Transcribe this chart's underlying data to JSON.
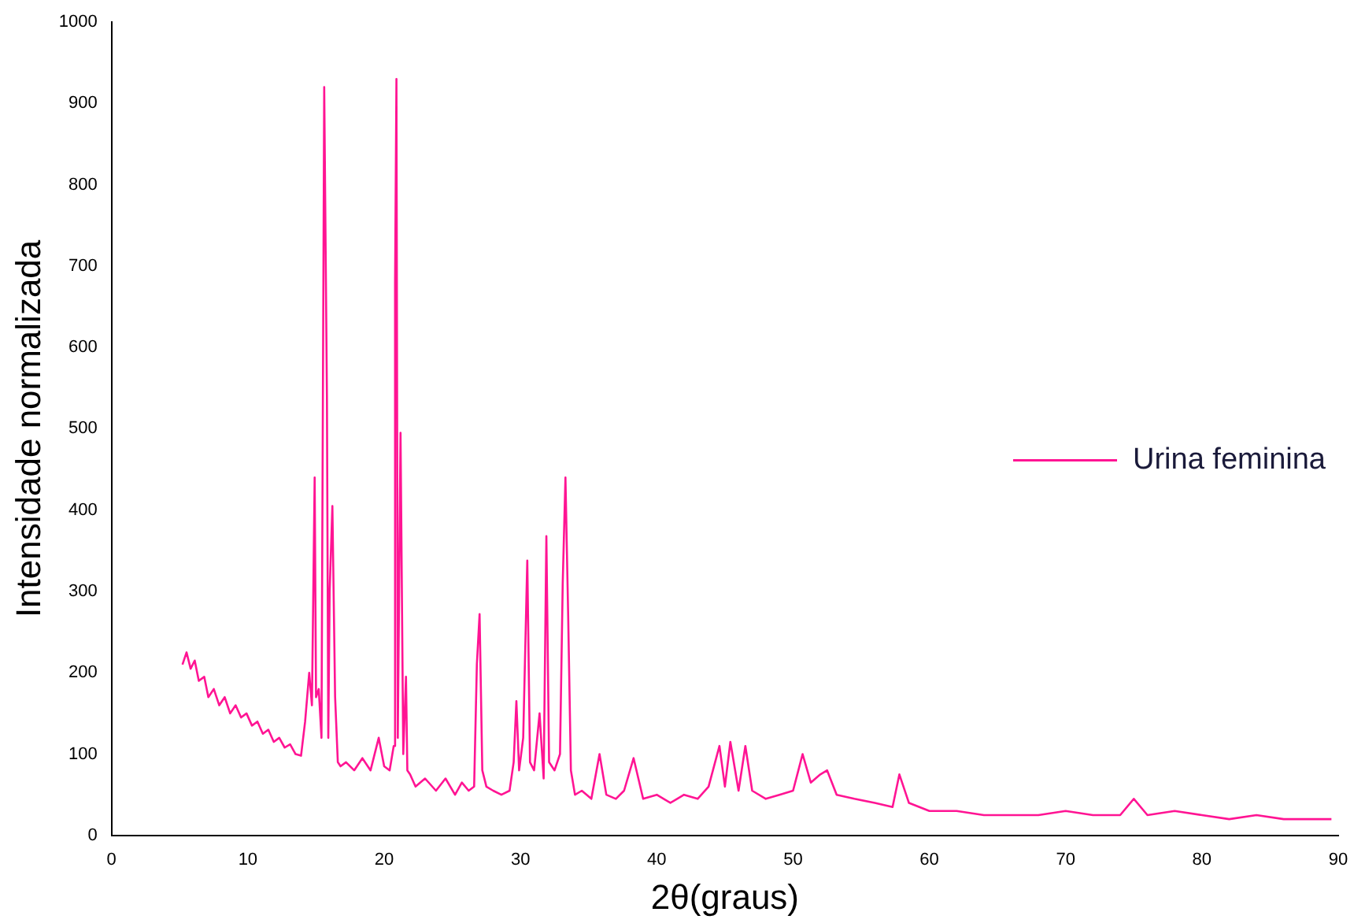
{
  "chart_data": {
    "type": "line",
    "xlabel": "2θ(graus)",
    "ylabel": "Intensidade normalizada",
    "xlim": [
      0,
      90
    ],
    "xticks": [
      0,
      10,
      20,
      30,
      40,
      50,
      60,
      70,
      80,
      90
    ],
    "ylim": [
      0,
      1000
    ],
    "yticks": [
      0,
      100,
      200,
      300,
      400,
      500,
      600,
      700,
      800,
      900,
      1000
    ],
    "grid": false,
    "legend": "right",
    "marker": "none",
    "line_style": "solid",
    "series": [
      {
        "name": "Urina feminina",
        "color": "#ff1493",
        "x": [
          5.2,
          5.5,
          5.8,
          6.1,
          6.4,
          6.8,
          7.1,
          7.5,
          7.9,
          8.3,
          8.7,
          9.1,
          9.5,
          9.9,
          10.3,
          10.7,
          11.1,
          11.5,
          11.9,
          12.3,
          12.7,
          13.1,
          13.5,
          13.9,
          14.2,
          14.5,
          14.7,
          14.9,
          15.0,
          15.2,
          15.4,
          15.6,
          15.8,
          15.9,
          16.0,
          16.2,
          16.4,
          16.6,
          16.8,
          17.2,
          17.8,
          18.4,
          19.0,
          19.6,
          20.0,
          20.4,
          20.7,
          20.8,
          20.9,
          21.0,
          21.2,
          21.4,
          21.6,
          21.7,
          21.9,
          22.3,
          23.0,
          23.8,
          24.5,
          25.2,
          25.7,
          26.2,
          26.6,
          26.8,
          27.0,
          27.2,
          27.5,
          28.0,
          28.6,
          29.2,
          29.5,
          29.7,
          29.9,
          30.2,
          30.5,
          30.7,
          31.0,
          31.4,
          31.7,
          31.9,
          32.1,
          32.5,
          32.9,
          33.1,
          33.3,
          33.5,
          33.7,
          34.0,
          34.5,
          35.2,
          35.8,
          36.3,
          37.0,
          37.6,
          38.3,
          39.0,
          40.0,
          41.0,
          42.0,
          43.0,
          43.8,
          44.6,
          45.0,
          45.4,
          46.0,
          46.5,
          47.0,
          48.0,
          49.0,
          50.0,
          50.7,
          51.3,
          52.0,
          52.5,
          53.2,
          54.5,
          56.0,
          57.3,
          57.8,
          58.5,
          60.0,
          62.0,
          64.0,
          66.0,
          68.0,
          70.0,
          72.0,
          74.0,
          75.0,
          76.0,
          78.0,
          80.0,
          82.0,
          84.0,
          86.0,
          88.0,
          89.5
        ],
        "values": [
          210,
          225,
          205,
          215,
          190,
          195,
          170,
          180,
          160,
          170,
          150,
          160,
          145,
          150,
          135,
          140,
          125,
          130,
          115,
          120,
          108,
          112,
          100,
          98,
          140,
          200,
          160,
          440,
          170,
          180,
          120,
          920,
          540,
          120,
          300,
          405,
          170,
          90,
          85,
          90,
          80,
          95,
          80,
          120,
          85,
          80,
          110,
          680,
          930,
          120,
          495,
          100,
          195,
          80,
          75,
          60,
          70,
          55,
          70,
          50,
          65,
          55,
          60,
          210,
          272,
          80,
          60,
          55,
          50,
          55,
          90,
          165,
          80,
          120,
          338,
          90,
          80,
          150,
          70,
          368,
          90,
          80,
          100,
          310,
          440,
          270,
          80,
          50,
          55,
          45,
          100,
          50,
          45,
          55,
          95,
          45,
          50,
          40,
          50,
          45,
          60,
          110,
          60,
          115,
          55,
          110,
          55,
          45,
          50,
          55,
          100,
          65,
          75,
          80,
          50,
          45,
          40,
          35,
          75,
          40,
          30,
          30,
          25,
          25,
          25,
          30,
          25,
          25,
          45,
          25,
          30,
          25,
          20,
          25,
          20,
          20,
          20
        ]
      }
    ]
  }
}
